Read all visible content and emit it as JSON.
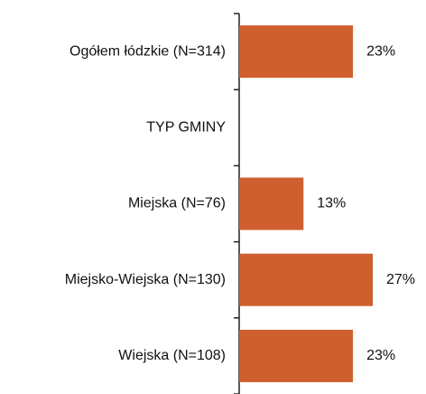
{
  "chart_data": {
    "type": "bar",
    "orientation": "horizontal",
    "categories": [
      "Ogółem łódzkie (N=314)",
      "TYP GMINY",
      "Miejska (N=76)",
      "Miejsko-Wiejska (N=130)",
      "Wiejska (N=108)"
    ],
    "values": [
      23,
      null,
      13,
      27,
      23
    ],
    "value_labels": [
      "23%",
      null,
      "13%",
      "27%",
      "23%"
    ],
    "color": "#cf5f2f"
  }
}
